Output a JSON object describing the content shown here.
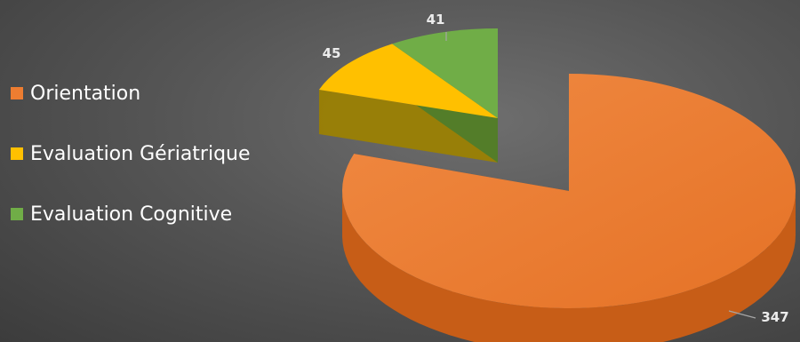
{
  "chart_data": {
    "type": "pie",
    "title": "",
    "categories": [
      "Orientation",
      "Evaluation Gériatrique",
      "Evaluation Cognitive"
    ],
    "values": [
      347,
      45,
      41
    ],
    "data_labels": [
      "347",
      "45",
      "41"
    ],
    "colors": [
      "#ED7D31",
      "#FFC000",
      "#70AD47"
    ],
    "legend_position": "left",
    "style": "3d-exploded"
  }
}
